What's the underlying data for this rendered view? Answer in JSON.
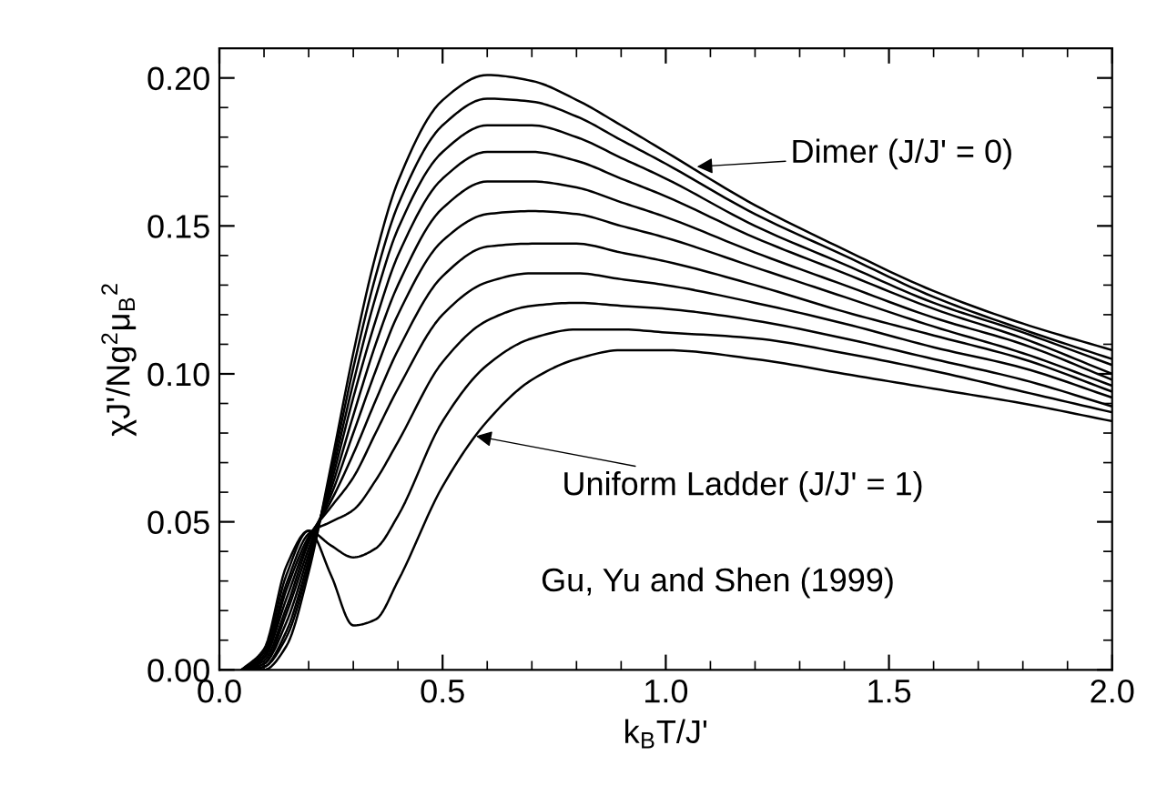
{
  "chart_data": {
    "type": "line",
    "xlabel": "k$_{B}$T/J'",
    "ylabel": "χJ'/Ng$^{2}$μ$_{B}$$^{2}$",
    "x": [
      0.05,
      0.1,
      0.15,
      0.2,
      0.25,
      0.3,
      0.35,
      0.4,
      0.5,
      0.6,
      0.7,
      0.8,
      0.9,
      1.0,
      1.2,
      1.4,
      1.6,
      1.8,
      2.0
    ],
    "series": [
      {
        "color": "#000000",
        "values": [
          0,
          0.0,
          0.008,
          0.033,
          0.069,
          0.107,
          0.14,
          0.165,
          0.1925,
          0.201,
          0.199,
          0.1926,
          0.184,
          0.175,
          0.157,
          0.142,
          0.128,
          0.117,
          0.108
        ]
      },
      {
        "color": "#000000",
        "values": [
          0,
          0.001,
          0.011,
          0.035,
          0.067,
          0.102,
          0.133,
          0.157,
          0.184,
          0.193,
          0.192,
          0.187,
          0.179,
          0.171,
          0.154,
          0.14,
          0.126,
          0.115,
          0.105
        ]
      },
      {
        "color": "#000000",
        "values": [
          0,
          0.001,
          0.013,
          0.037,
          0.065,
          0.097,
          0.126,
          0.149,
          0.175,
          0.184,
          0.184,
          0.18,
          0.173,
          0.166,
          0.15,
          0.137,
          0.124,
          0.114,
          0.103
        ]
      },
      {
        "color": "#000000",
        "values": [
          0,
          0.002,
          0.016,
          0.039,
          0.063,
          0.092,
          0.118,
          0.14,
          0.166,
          0.175,
          0.175,
          0.172,
          0.166,
          0.16,
          0.146,
          0.134,
          0.122,
          0.112,
          0.1
        ]
      },
      {
        "color": "#000000",
        "values": [
          0,
          0.002,
          0.019,
          0.041,
          0.061,
          0.086,
          0.11,
          0.13,
          0.156,
          0.165,
          0.165,
          0.163,
          0.158,
          0.153,
          0.141,
          0.13,
          0.119,
          0.11,
          0.098
        ]
      },
      {
        "color": "#000000",
        "values": [
          0,
          0.003,
          0.021,
          0.043,
          0.059,
          0.08,
          0.101,
          0.12,
          0.145,
          0.154,
          0.155,
          0.154,
          0.15,
          0.146,
          0.136,
          0.126,
          0.116,
          0.107,
          0.096
        ]
      },
      {
        "color": "#000000",
        "values": [
          0,
          0.004,
          0.024,
          0.044,
          0.057,
          0.073,
          0.091,
          0.108,
          0.133,
          0.143,
          0.144,
          0.144,
          0.141,
          0.138,
          0.13,
          0.121,
          0.113,
          0.105,
          0.094
        ]
      },
      {
        "color": "#000000",
        "values": [
          0,
          0.004,
          0.027,
          0.045,
          0.055,
          0.065,
          0.08,
          0.095,
          0.12,
          0.131,
          0.134,
          0.134,
          0.132,
          0.13,
          0.124,
          0.117,
          0.109,
          0.102,
          0.092
        ]
      },
      {
        "color": "#000000",
        "values": [
          0,
          0.005,
          0.029,
          0.046,
          0.05,
          0.054,
          0.064,
          0.077,
          0.104,
          0.118,
          0.123,
          0.124,
          0.123,
          0.122,
          0.118,
          0.112,
          0.105,
          0.098,
          0.089
        ]
      },
      {
        "color": "#000000",
        "values": [
          0,
          0.006,
          0.032,
          0.047,
          0.042,
          0.038,
          0.041,
          0.052,
          0.084,
          0.103,
          0.112,
          0.115,
          0.115,
          0.114,
          0.112,
          0.107,
          0.101,
          0.094,
          0.087
        ]
      },
      {
        "color": "#000000",
        "values": [
          0,
          0.007,
          0.035,
          0.047,
          0.032,
          0.015,
          0.017,
          0.03,
          0.062,
          0.084,
          0.098,
          0.105,
          0.108,
          0.108,
          0.105,
          0.1,
          0.095,
          0.09,
          0.084
        ]
      }
    ],
    "xlim": [
      0.0,
      2.0
    ],
    "ylim": [
      0.0,
      0.21
    ],
    "xticks": [
      {
        "value": 0.0,
        "label": "0.0"
      },
      {
        "value": 0.1,
        "label": null
      },
      {
        "value": 0.2,
        "label": null
      },
      {
        "value": 0.3,
        "label": null
      },
      {
        "value": 0.4,
        "label": null
      },
      {
        "value": 0.5,
        "label": "0.5"
      },
      {
        "value": 0.6,
        "label": null
      },
      {
        "value": 0.7,
        "label": null
      },
      {
        "value": 0.8,
        "label": null
      },
      {
        "value": 0.9,
        "label": null
      },
      {
        "value": 1.0,
        "label": "1.0"
      },
      {
        "value": 1.1,
        "label": null
      },
      {
        "value": 1.2,
        "label": null
      },
      {
        "value": 1.3,
        "label": null
      },
      {
        "value": 1.4,
        "label": null
      },
      {
        "value": 1.5,
        "label": "1.5"
      },
      {
        "value": 1.6,
        "label": null
      },
      {
        "value": 1.7,
        "label": null
      },
      {
        "value": 1.8,
        "label": null
      },
      {
        "value": 1.9,
        "label": null
      },
      {
        "value": 2.0,
        "label": "2.0"
      }
    ],
    "yticks": [
      {
        "value": 0.0,
        "label": "0.00"
      },
      {
        "value": 0.01,
        "label": null
      },
      {
        "value": 0.02,
        "label": null
      },
      {
        "value": 0.03,
        "label": null
      },
      {
        "value": 0.04,
        "label": null
      },
      {
        "value": 0.05,
        "label": "0.05"
      },
      {
        "value": 0.06,
        "label": null
      },
      {
        "value": 0.07,
        "label": null
      },
      {
        "value": 0.08,
        "label": null
      },
      {
        "value": 0.09,
        "label": null
      },
      {
        "value": 0.1,
        "label": "0.10"
      },
      {
        "value": 0.11,
        "label": null
      },
      {
        "value": 0.12,
        "label": null
      },
      {
        "value": 0.13,
        "label": null
      },
      {
        "value": 0.14,
        "label": null
      },
      {
        "value": 0.15,
        "label": "0.15"
      },
      {
        "value": 0.16,
        "label": null
      },
      {
        "value": 0.17,
        "label": null
      },
      {
        "value": 0.18,
        "label": null
      },
      {
        "value": 0.19,
        "label": null
      },
      {
        "value": 0.2,
        "label": "0.20"
      }
    ],
    "annotations": [
      {
        "text": "Dimer (J/J' = 0)",
        "x": 1.07,
        "y": 0.17
      },
      {
        "text": "Uniform Ladder (J/J' = 1)",
        "x": 0.575,
        "y": 0.079
      },
      "Gu, Yu and Shen (1999)"
    ],
    "grid": false,
    "legend": false,
    "marker": "none",
    "line_style": "solid"
  }
}
